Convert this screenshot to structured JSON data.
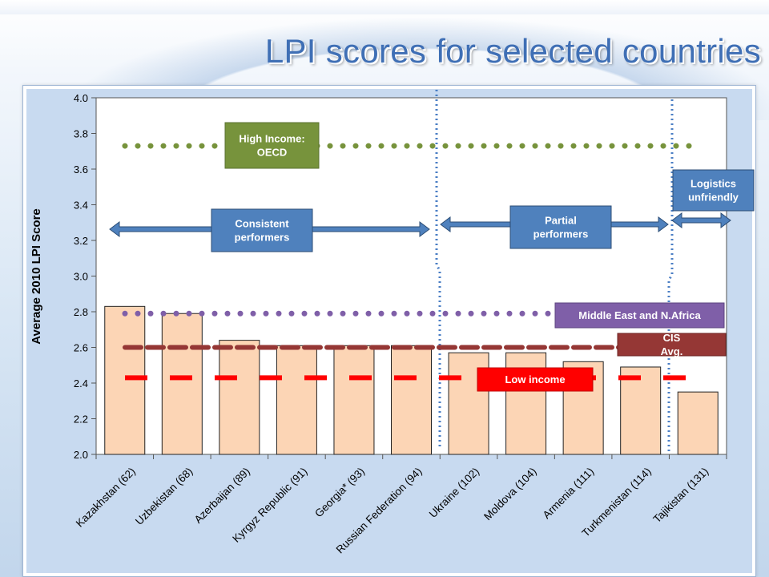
{
  "slide": {
    "title": "LPI scores for selected countries"
  },
  "colors": {
    "bar_fill": "#fcd5b5",
    "bar_stroke": "#222222",
    "high_income": "#77933c",
    "mena": "#7f5fa8",
    "cis": "#953735",
    "low_income": "#ff0000",
    "arrow": "#4f81bd",
    "divider": "#4a7ec4"
  },
  "chart_data": {
    "type": "bar",
    "title": "",
    "xlabel": "",
    "ylabel": "Average 2010 LPI Score",
    "ylim": [
      2.0,
      4.0
    ],
    "yticks": [
      "2.0",
      "2.2",
      "2.4",
      "2.6",
      "2.8",
      "3.0",
      "3.2",
      "3.4",
      "3.6",
      "3.8",
      "4.0"
    ],
    "grid": false,
    "categories": [
      "Kazakhstan (62)",
      "Uzbekistan (68)",
      "Azerbaijan (89)",
      "Kyrgyz Republic (91)",
      "Georgia* (93)",
      "Russian Federation (94)",
      "Ukraine (102)",
      "Moldova (104)",
      "Armenia (111)",
      "Turkmenistan (114)",
      "Tajikistan (131)"
    ],
    "values": [
      2.83,
      2.79,
      2.64,
      2.61,
      2.61,
      2.61,
      2.57,
      2.57,
      2.52,
      2.49,
      2.35
    ],
    "reference_lines": [
      {
        "label": "High Income: OECD",
        "value": 3.73,
        "style": "dotted",
        "color": "#77933c"
      },
      {
        "label": "Middle East and N.Africa",
        "value": 2.79,
        "style": "dotted",
        "color": "#7f5fa8"
      },
      {
        "label": "CIS Avg.",
        "value": 2.6,
        "style": "long-dash",
        "color": "#953735"
      },
      {
        "label": "Low income",
        "value": 2.43,
        "style": "dash",
        "color": "#ff0000"
      }
    ],
    "groups": [
      {
        "label": "Consistent performers",
        "from_index": 0,
        "to_index": 5
      },
      {
        "label": "Partial performers",
        "from_index": 6,
        "to_index": 9
      },
      {
        "label": "Logistics unfriendly",
        "from_index": 10,
        "to_index": 10
      }
    ]
  }
}
